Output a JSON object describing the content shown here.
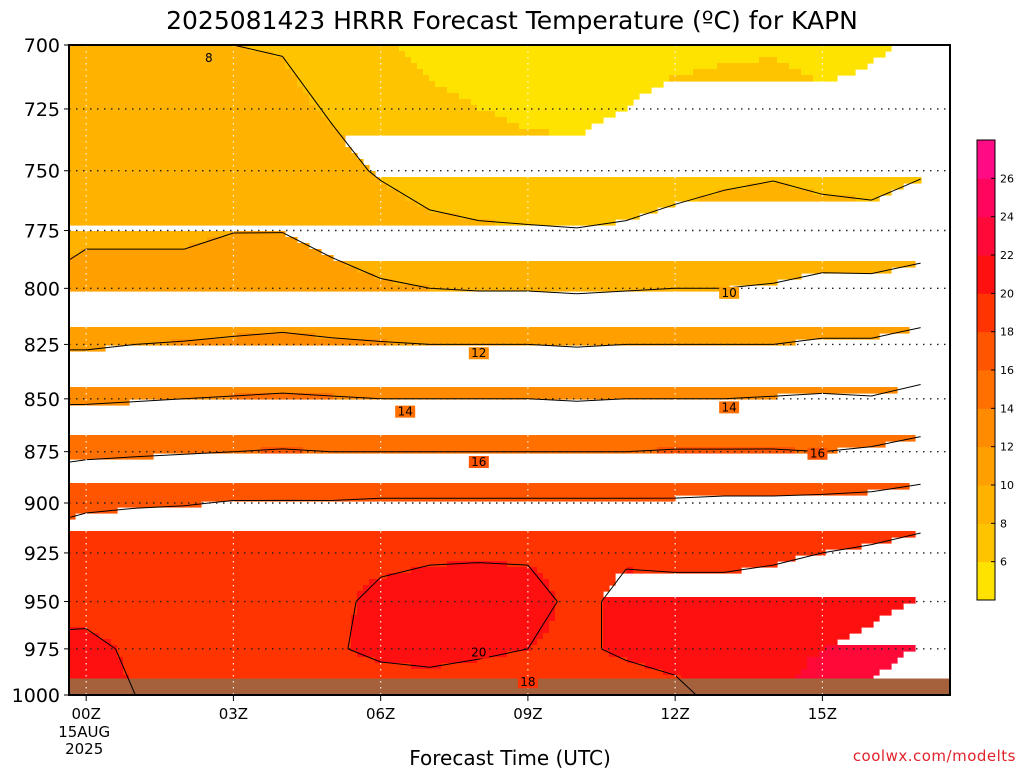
{
  "chart_data": {
    "type": "heatmap",
    "title": "2025081423 HRRR Forecast Temperature (ºC) for KAPN",
    "xlabel": "Forecast Time (UTC)",
    "ylabel": "",
    "x": [
      -0.5,
      0,
      1,
      2,
      3,
      4,
      5,
      6,
      7,
      8,
      9,
      10,
      11,
      12,
      13,
      14,
      15,
      16,
      17
    ],
    "xlim": [
      -0.35,
      17.6
    ],
    "xticks": [
      {
        "value": 0,
        "label": "00Z",
        "label2": "15AUG",
        "label3": "2025"
      },
      {
        "value": 3,
        "label": "03Z"
      },
      {
        "value": 6,
        "label": "06Z"
      },
      {
        "value": 9,
        "label": "09Z"
      },
      {
        "value": 12,
        "label": "12Z"
      },
      {
        "value": 15,
        "label": "15Z"
      }
    ],
    "y_pressure_hPa": [
      700,
      750,
      800,
      825,
      850,
      875,
      900,
      925,
      950,
      975,
      1000
    ],
    "ylim": [
      1000,
      700
    ],
    "yticks": [
      700,
      725,
      750,
      775,
      800,
      825,
      850,
      875,
      900,
      925,
      950,
      975,
      1000
    ],
    "temperature_C": [
      [
        8.4,
        8.4,
        8.2,
        8.1,
        8.0,
        7.9,
        7.0,
        6.2,
        5.6,
        5.4,
        5.2,
        5.2,
        5.4,
        5.6,
        5.7,
        5.8,
        5.4,
        5.8,
        6.2
      ],
      [
        9.6,
        9.6,
        9.4,
        9.2,
        9.1,
        9.0,
        8.6,
        7.8,
        7.0,
        6.6,
        6.4,
        6.3,
        6.6,
        7.2,
        7.6,
        7.8,
        7.4,
        7.2,
        7.8
      ],
      [
        10.1,
        10.2,
        10.3,
        10.4,
        10.8,
        10.9,
        10.5,
        10.2,
        10.0,
        9.9,
        9.9,
        9.8,
        9.9,
        10.0,
        10.0,
        10.1,
        10.4,
        10.4,
        10.6
      ],
      [
        11.8,
        11.8,
        12.0,
        12.1,
        12.2,
        12.3,
        12.2,
        12.1,
        12.0,
        12.0,
        12.0,
        11.9,
        12.0,
        12.0,
        12.0,
        12.0,
        12.2,
        12.2,
        12.6
      ],
      [
        13.8,
        13.8,
        13.9,
        14.0,
        14.1,
        14.2,
        14.1,
        14.0,
        14.0,
        14.0,
        14.0,
        13.9,
        14.0,
        14.0,
        14.0,
        14.1,
        14.2,
        14.1,
        14.5
      ],
      [
        15.6,
        15.7,
        15.8,
        15.9,
        16.0,
        16.1,
        16.0,
        16.0,
        16.0,
        16.0,
        16.0,
        16.0,
        16.0,
        16.1,
        16.1,
        16.1,
        16.0,
        16.2,
        16.6
      ],
      [
        17.4,
        17.6,
        17.8,
        17.9,
        18.1,
        18.1,
        18.1,
        18.2,
        18.2,
        18.2,
        18.2,
        18.2,
        18.2,
        18.2,
        18.3,
        18.3,
        18.4,
        18.5,
        18.8
      ],
      [
        19.2,
        19.6,
        19.7,
        19.7,
        19.8,
        19.8,
        19.9,
        19.8,
        19.9,
        19.9,
        19.9,
        19.8,
        19.9,
        19.8,
        19.8,
        19.9,
        20.0,
        20.3,
        20.8
      ],
      [
        19.4,
        19.6,
        19.6,
        19.6,
        19.6,
        19.7,
        19.8,
        20.2,
        20.3,
        20.4,
        20.3,
        19.8,
        20.2,
        20.3,
        20.3,
        20.3,
        20.6,
        21.2,
        22.2
      ],
      [
        20.4,
        20.3,
        19.8,
        19.5,
        19.5,
        19.6,
        19.9,
        20.2,
        20.4,
        20.2,
        20.0,
        19.8,
        20.2,
        20.4,
        20.6,
        21.2,
        22.0,
        22.8,
        24.2
      ],
      [
        20.6,
        20.5,
        20.0,
        19.6,
        19.3,
        19.3,
        19.4,
        19.5,
        19.4,
        19.3,
        19.3,
        19.2,
        19.4,
        19.7,
        20.4,
        21.6,
        23.0,
        24.6,
        26.2
      ]
    ],
    "contour_levels": [
      8,
      10,
      12,
      14,
      16,
      18,
      20
    ],
    "contour_labels": [
      {
        "text": "8",
        "x": 2.5,
        "p": 705
      },
      {
        "text": "10",
        "x": 13.1,
        "p": 802
      },
      {
        "text": "12",
        "x": 8.0,
        "p": 829
      },
      {
        "text": "14",
        "x": 6.5,
        "p": 856
      },
      {
        "text": "14",
        "x": 13.1,
        "p": 854
      },
      {
        "text": "16",
        "x": 8.0,
        "p": 880
      },
      {
        "text": "16",
        "x": 14.9,
        "p": 876
      },
      {
        "text": "20",
        "x": 8.0,
        "p": 977
      },
      {
        "text": "18",
        "x": 9.0,
        "p": 993
      }
    ],
    "colorbar": {
      "bounds": [
        4,
        6,
        8,
        10,
        12,
        14,
        16,
        18,
        20,
        22,
        24,
        26,
        28
      ],
      "colors": [
        "#ffe300",
        "#ffc400",
        "#ffb200",
        "#ffa000",
        "#ff8c00",
        "#ff7000",
        "#ff5400",
        "#ff3400",
        "#ff1010",
        "#ff0a38",
        "#ff055e",
        "#ff0b86",
        "#ff1aa5"
      ],
      "ticks": [
        6,
        8,
        10,
        12,
        14,
        16,
        18,
        20,
        22,
        24,
        26
      ]
    },
    "ground_color": "#a5603c",
    "credit": "coolwx.com/modelts",
    "grid": true
  }
}
